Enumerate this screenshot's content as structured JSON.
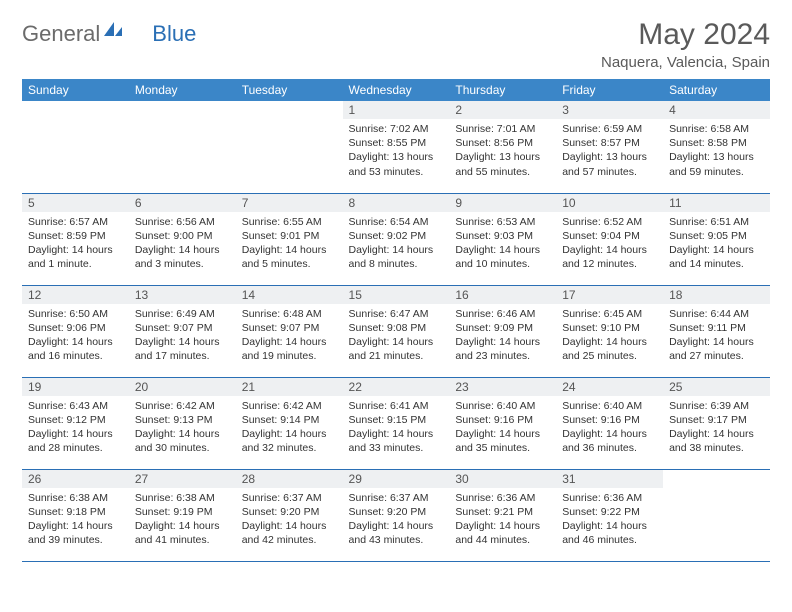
{
  "brand": {
    "part1": "General",
    "part2": "Blue"
  },
  "title": "May 2024",
  "location": "Naquera, Valencia, Spain",
  "colors": {
    "header_bg": "#3b86c8",
    "header_text": "#ffffff",
    "rule": "#2a6fb5",
    "daynum_bg": "#eef0f2",
    "text": "#333333",
    "title_text": "#5a5a5a"
  },
  "weekdays": [
    "Sunday",
    "Monday",
    "Tuesday",
    "Wednesday",
    "Thursday",
    "Friday",
    "Saturday"
  ],
  "weeks": [
    [
      {
        "empty": true
      },
      {
        "empty": true
      },
      {
        "empty": true
      },
      {
        "day": "1",
        "sunrise": "Sunrise: 7:02 AM",
        "sunset": "Sunset: 8:55 PM",
        "daylight": "Daylight: 13 hours and 53 minutes."
      },
      {
        "day": "2",
        "sunrise": "Sunrise: 7:01 AM",
        "sunset": "Sunset: 8:56 PM",
        "daylight": "Daylight: 13 hours and 55 minutes."
      },
      {
        "day": "3",
        "sunrise": "Sunrise: 6:59 AM",
        "sunset": "Sunset: 8:57 PM",
        "daylight": "Daylight: 13 hours and 57 minutes."
      },
      {
        "day": "4",
        "sunrise": "Sunrise: 6:58 AM",
        "sunset": "Sunset: 8:58 PM",
        "daylight": "Daylight: 13 hours and 59 minutes."
      }
    ],
    [
      {
        "day": "5",
        "sunrise": "Sunrise: 6:57 AM",
        "sunset": "Sunset: 8:59 PM",
        "daylight": "Daylight: 14 hours and 1 minute."
      },
      {
        "day": "6",
        "sunrise": "Sunrise: 6:56 AM",
        "sunset": "Sunset: 9:00 PM",
        "daylight": "Daylight: 14 hours and 3 minutes."
      },
      {
        "day": "7",
        "sunrise": "Sunrise: 6:55 AM",
        "sunset": "Sunset: 9:01 PM",
        "daylight": "Daylight: 14 hours and 5 minutes."
      },
      {
        "day": "8",
        "sunrise": "Sunrise: 6:54 AM",
        "sunset": "Sunset: 9:02 PM",
        "daylight": "Daylight: 14 hours and 8 minutes."
      },
      {
        "day": "9",
        "sunrise": "Sunrise: 6:53 AM",
        "sunset": "Sunset: 9:03 PM",
        "daylight": "Daylight: 14 hours and 10 minutes."
      },
      {
        "day": "10",
        "sunrise": "Sunrise: 6:52 AM",
        "sunset": "Sunset: 9:04 PM",
        "daylight": "Daylight: 14 hours and 12 minutes."
      },
      {
        "day": "11",
        "sunrise": "Sunrise: 6:51 AM",
        "sunset": "Sunset: 9:05 PM",
        "daylight": "Daylight: 14 hours and 14 minutes."
      }
    ],
    [
      {
        "day": "12",
        "sunrise": "Sunrise: 6:50 AM",
        "sunset": "Sunset: 9:06 PM",
        "daylight": "Daylight: 14 hours and 16 minutes."
      },
      {
        "day": "13",
        "sunrise": "Sunrise: 6:49 AM",
        "sunset": "Sunset: 9:07 PM",
        "daylight": "Daylight: 14 hours and 17 minutes."
      },
      {
        "day": "14",
        "sunrise": "Sunrise: 6:48 AM",
        "sunset": "Sunset: 9:07 PM",
        "daylight": "Daylight: 14 hours and 19 minutes."
      },
      {
        "day": "15",
        "sunrise": "Sunrise: 6:47 AM",
        "sunset": "Sunset: 9:08 PM",
        "daylight": "Daylight: 14 hours and 21 minutes."
      },
      {
        "day": "16",
        "sunrise": "Sunrise: 6:46 AM",
        "sunset": "Sunset: 9:09 PM",
        "daylight": "Daylight: 14 hours and 23 minutes."
      },
      {
        "day": "17",
        "sunrise": "Sunrise: 6:45 AM",
        "sunset": "Sunset: 9:10 PM",
        "daylight": "Daylight: 14 hours and 25 minutes."
      },
      {
        "day": "18",
        "sunrise": "Sunrise: 6:44 AM",
        "sunset": "Sunset: 9:11 PM",
        "daylight": "Daylight: 14 hours and 27 minutes."
      }
    ],
    [
      {
        "day": "19",
        "sunrise": "Sunrise: 6:43 AM",
        "sunset": "Sunset: 9:12 PM",
        "daylight": "Daylight: 14 hours and 28 minutes."
      },
      {
        "day": "20",
        "sunrise": "Sunrise: 6:42 AM",
        "sunset": "Sunset: 9:13 PM",
        "daylight": "Daylight: 14 hours and 30 minutes."
      },
      {
        "day": "21",
        "sunrise": "Sunrise: 6:42 AM",
        "sunset": "Sunset: 9:14 PM",
        "daylight": "Daylight: 14 hours and 32 minutes."
      },
      {
        "day": "22",
        "sunrise": "Sunrise: 6:41 AM",
        "sunset": "Sunset: 9:15 PM",
        "daylight": "Daylight: 14 hours and 33 minutes."
      },
      {
        "day": "23",
        "sunrise": "Sunrise: 6:40 AM",
        "sunset": "Sunset: 9:16 PM",
        "daylight": "Daylight: 14 hours and 35 minutes."
      },
      {
        "day": "24",
        "sunrise": "Sunrise: 6:40 AM",
        "sunset": "Sunset: 9:16 PM",
        "daylight": "Daylight: 14 hours and 36 minutes."
      },
      {
        "day": "25",
        "sunrise": "Sunrise: 6:39 AM",
        "sunset": "Sunset: 9:17 PM",
        "daylight": "Daylight: 14 hours and 38 minutes."
      }
    ],
    [
      {
        "day": "26",
        "sunrise": "Sunrise: 6:38 AM",
        "sunset": "Sunset: 9:18 PM",
        "daylight": "Daylight: 14 hours and 39 minutes."
      },
      {
        "day": "27",
        "sunrise": "Sunrise: 6:38 AM",
        "sunset": "Sunset: 9:19 PM",
        "daylight": "Daylight: 14 hours and 41 minutes."
      },
      {
        "day": "28",
        "sunrise": "Sunrise: 6:37 AM",
        "sunset": "Sunset: 9:20 PM",
        "daylight": "Daylight: 14 hours and 42 minutes."
      },
      {
        "day": "29",
        "sunrise": "Sunrise: 6:37 AM",
        "sunset": "Sunset: 9:20 PM",
        "daylight": "Daylight: 14 hours and 43 minutes."
      },
      {
        "day": "30",
        "sunrise": "Sunrise: 6:36 AM",
        "sunset": "Sunset: 9:21 PM",
        "daylight": "Daylight: 14 hours and 44 minutes."
      },
      {
        "day": "31",
        "sunrise": "Sunrise: 6:36 AM",
        "sunset": "Sunset: 9:22 PM",
        "daylight": "Daylight: 14 hours and 46 minutes."
      },
      {
        "empty": true
      }
    ]
  ]
}
